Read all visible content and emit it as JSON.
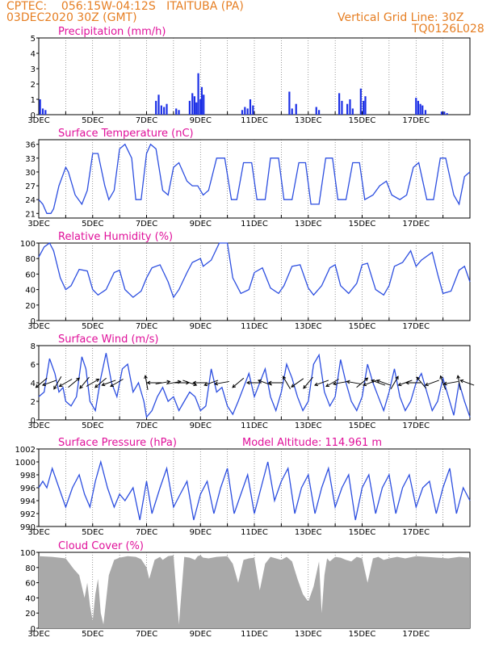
{
  "header": {
    "line1": "CPTEC:    056:15W-04:12S   ITAITUBA (PA)",
    "line2": "03DEC2020 30Z (GMT)",
    "right1": "Vertical Grid Line: 30Z",
    "right2": "TQ0126L028"
  },
  "colors": {
    "header": "#e67e22",
    "title": "#e0109a",
    "line": "#2d4fe0",
    "bar": "#1c30e6",
    "cloud": "#a9a9a9"
  },
  "x_ticks": [
    "3DEC",
    "5DEC",
    "7DEC",
    "9DEC",
    "11DEC",
    "13DEC",
    "15DEC",
    "17DEC"
  ],
  "chart_data": [
    {
      "type": "bar",
      "title": "Precipitation (mm/h)",
      "ylim": [
        0,
        5
      ],
      "yticks": [
        "0",
        "1",
        "2",
        "3",
        "4",
        "5"
      ],
      "x_unit": "days since 3DEC 00Z",
      "events": [
        [
          0.05,
          1.0
        ],
        [
          0.15,
          0.4
        ],
        [
          0.25,
          0.3
        ],
        [
          4.35,
          0.9
        ],
        [
          4.45,
          1.3
        ],
        [
          4.55,
          0.6
        ],
        [
          4.65,
          0.5
        ],
        [
          4.75,
          0.7
        ],
        [
          5.1,
          0.4
        ],
        [
          5.2,
          0.3
        ],
        [
          5.6,
          0.9
        ],
        [
          5.7,
          1.4
        ],
        [
          5.78,
          1.2
        ],
        [
          5.85,
          0.8
        ],
        [
          5.92,
          2.7
        ],
        [
          6.0,
          1.0
        ],
        [
          6.05,
          1.8
        ],
        [
          6.12,
          1.3
        ],
        [
          7.55,
          0.3
        ],
        [
          7.65,
          0.5
        ],
        [
          7.75,
          0.4
        ],
        [
          7.85,
          1.0
        ],
        [
          7.95,
          0.6
        ],
        [
          9.3,
          1.5
        ],
        [
          9.4,
          0.4
        ],
        [
          9.55,
          0.7
        ],
        [
          10.3,
          0.5
        ],
        [
          10.4,
          0.3
        ],
        [
          11.15,
          1.4
        ],
        [
          11.25,
          0.9
        ],
        [
          11.45,
          0.7
        ],
        [
          11.55,
          1.0
        ],
        [
          11.65,
          0.4
        ],
        [
          11.95,
          1.7
        ],
        [
          12.05,
          0.9
        ],
        [
          12.12,
          1.2
        ],
        [
          14.0,
          1.1
        ],
        [
          14.08,
          0.9
        ],
        [
          14.16,
          0.7
        ],
        [
          14.24,
          0.6
        ],
        [
          14.35,
          0.3
        ],
        [
          14.95,
          0.2
        ],
        [
          15.05,
          0.2
        ],
        [
          15.15,
          0.1
        ]
      ]
    },
    {
      "type": "line",
      "title": "Surface Temperature (nC)",
      "ylim": [
        20,
        37
      ],
      "yticks": [
        "21",
        "24",
        "27",
        "30",
        "33",
        "36"
      ],
      "x": [
        0,
        0.15,
        0.3,
        0.45,
        0.55,
        0.75,
        1.0,
        1.1,
        1.35,
        1.6,
        1.8,
        2.0,
        2.2,
        2.45,
        2.6,
        2.8,
        3.0,
        3.2,
        3.45,
        3.6,
        3.8,
        4.0,
        4.15,
        4.35,
        4.6,
        4.8,
        5.0,
        5.2,
        5.5,
        5.7,
        5.9,
        6.1,
        6.3,
        6.6,
        6.9,
        7.15,
        7.35,
        7.6,
        7.9,
        8.1,
        8.4,
        8.6,
        8.9,
        9.1,
        9.4,
        9.65,
        9.9,
        10.1,
        10.4,
        10.65,
        10.9,
        11.1,
        11.4,
        11.65,
        11.9,
        12.1,
        12.4,
        12.65,
        12.9,
        13.1,
        13.4,
        13.65,
        13.9,
        14.1,
        14.4,
        14.65,
        14.9,
        15.1,
        15.4,
        15.6,
        15.8,
        16.0
      ],
      "values": [
        24,
        23,
        21,
        21,
        22,
        27,
        31,
        30,
        25,
        23,
        26,
        34,
        34,
        27,
        24,
        26,
        35,
        36,
        33,
        24,
        24,
        34,
        36,
        35,
        26,
        25,
        31,
        32,
        28,
        27,
        27,
        25,
        26,
        33,
        33,
        24,
        24,
        32,
        32,
        24,
        24,
        33,
        33,
        24,
        24,
        32,
        32,
        23,
        23,
        33,
        33,
        24,
        24,
        32,
        32,
        24,
        25,
        27,
        28,
        25,
        24,
        25,
        31,
        32,
        24,
        24,
        33,
        33,
        25,
        23,
        29,
        30
      ]
    },
    {
      "type": "line",
      "title": "Relative Humidity (%)",
      "ylim": [
        0,
        100
      ],
      "yticks": [
        "0",
        "20",
        "40",
        "60",
        "80",
        "100"
      ],
      "x": [
        0,
        0.2,
        0.4,
        0.55,
        0.8,
        1.0,
        1.2,
        1.5,
        1.8,
        2.0,
        2.2,
        2.5,
        2.8,
        3.0,
        3.2,
        3.5,
        3.8,
        4.0,
        4.2,
        4.5,
        4.8,
        5.0,
        5.2,
        5.5,
        5.7,
        6.0,
        6.1,
        6.4,
        6.7,
        7.0,
        7.2,
        7.5,
        7.8,
        8.0,
        8.3,
        8.6,
        8.9,
        9.1,
        9.4,
        9.7,
        10.0,
        10.2,
        10.5,
        10.8,
        11.0,
        11.2,
        11.5,
        11.8,
        12.0,
        12.2,
        12.5,
        12.8,
        13.0,
        13.2,
        13.5,
        13.8,
        14.0,
        14.2,
        14.6,
        14.8,
        15.0,
        15.3,
        15.6,
        15.8,
        16.0
      ],
      "values": [
        82,
        95,
        100,
        90,
        55,
        40,
        45,
        66,
        64,
        40,
        33,
        40,
        62,
        65,
        40,
        30,
        38,
        55,
        68,
        72,
        50,
        30,
        40,
        62,
        75,
        80,
        70,
        78,
        100,
        100,
        55,
        35,
        40,
        62,
        68,
        42,
        35,
        45,
        70,
        72,
        42,
        33,
        45,
        68,
        72,
        45,
        35,
        48,
        72,
        74,
        40,
        33,
        45,
        70,
        75,
        90,
        70,
        78,
        88,
        60,
        35,
        38,
        65,
        70,
        50
      ]
    },
    {
      "type": "line",
      "title": "Surface Wind (m/s)",
      "ylim": [
        0,
        8
      ],
      "yticks": [
        "0",
        "2",
        "4",
        "6",
        "8"
      ],
      "x": [
        0,
        0.2,
        0.4,
        0.6,
        0.75,
        0.9,
        1.0,
        1.2,
        1.4,
        1.6,
        1.75,
        1.9,
        2.1,
        2.3,
        2.5,
        2.7,
        2.9,
        3.1,
        3.3,
        3.5,
        3.7,
        3.9,
        4.0,
        4.2,
        4.4,
        4.6,
        4.8,
        5.0,
        5.2,
        5.4,
        5.6,
        5.8,
        6.0,
        6.2,
        6.4,
        6.6,
        6.8,
        7.0,
        7.2,
        7.4,
        7.6,
        7.8,
        8.0,
        8.2,
        8.4,
        8.6,
        8.8,
        9.0,
        9.2,
        9.4,
        9.6,
        9.8,
        10.0,
        10.2,
        10.4,
        10.6,
        10.8,
        11.0,
        11.2,
        11.4,
        11.6,
        11.8,
        12.0,
        12.2,
        12.4,
        12.6,
        12.8,
        13.0,
        13.2,
        13.4,
        13.6,
        13.8,
        14.0,
        14.2,
        14.4,
        14.6,
        14.8,
        15.0,
        15.2,
        15.4,
        15.6,
        15.8,
        16.0
      ],
      "values": [
        2.5,
        3.0,
        6.6,
        5.0,
        3.0,
        3.5,
        2.0,
        1.5,
        2.5,
        6.8,
        5.5,
        2.0,
        1.0,
        4.5,
        7.2,
        4.0,
        2.5,
        5.5,
        6.0,
        3.0,
        4.0,
        2.0,
        0.3,
        1.0,
        2.5,
        3.5,
        2.0,
        2.5,
        1.0,
        2.0,
        3.0,
        2.5,
        1.0,
        1.5,
        5.5,
        3.0,
        3.5,
        1.5,
        0.6,
        2.0,
        3.5,
        5.0,
        2.5,
        4.0,
        5.5,
        2.5,
        1.0,
        3.0,
        6.0,
        4.5,
        2.5,
        1.0,
        2.0,
        6.0,
        7.0,
        3.0,
        1.5,
        2.5,
        6.5,
        4.0,
        2.0,
        1.0,
        2.5,
        6.0,
        4.0,
        2.5,
        1.0,
        3.0,
        5.5,
        2.5,
        1.0,
        2.0,
        4.0,
        5.0,
        3.0,
        1.0,
        2.0,
        4.5,
        2.5,
        0.5,
        4.0,
        2.0,
        0.3
      ],
      "arrows": [
        [
          0.1,
          220
        ],
        [
          0.4,
          200
        ],
        [
          0.7,
          240
        ],
        [
          1.0,
          210
        ],
        [
          1.3,
          40
        ],
        [
          1.7,
          230
        ],
        [
          2.0,
          30
        ],
        [
          2.3,
          220
        ],
        [
          2.6,
          200
        ],
        [
          2.9,
          210
        ],
        [
          4.0,
          100
        ],
        [
          4.3,
          180
        ],
        [
          4.6,
          10
        ],
        [
          5.0,
          10
        ],
        [
          5.3,
          0
        ],
        [
          5.6,
          340
        ],
        [
          6.0,
          180
        ],
        [
          6.4,
          200
        ],
        [
          6.8,
          190
        ],
        [
          7.4,
          220
        ],
        [
          8.0,
          180
        ],
        [
          8.4,
          160
        ],
        [
          8.8,
          180
        ],
        [
          9.2,
          120
        ],
        [
          9.6,
          215
        ],
        [
          10.0,
          230
        ],
        [
          10.5,
          200
        ],
        [
          10.9,
          210
        ],
        [
          11.2,
          190
        ],
        [
          11.7,
          170
        ],
        [
          12.0,
          40
        ],
        [
          12.3,
          200
        ],
        [
          12.6,
          160
        ],
        [
          12.8,
          160
        ],
        [
          13.2,
          60
        ],
        [
          13.6,
          200
        ],
        [
          13.9,
          180
        ],
        [
          14.2,
          130
        ],
        [
          14.6,
          200
        ],
        [
          15.0,
          110
        ],
        [
          15.3,
          190
        ],
        [
          15.6,
          100
        ],
        [
          15.9,
          160
        ]
      ]
    },
    {
      "type": "line",
      "title": "Surface Pressure (hPa)",
      "annotation": "Model Altitude: 114.961 m",
      "ylim": [
        990,
        1002
      ],
      "yticks": [
        "990",
        "992",
        "994",
        "996",
        "998",
        "1000",
        "1002"
      ],
      "x": [
        0,
        0.15,
        0.3,
        0.5,
        0.75,
        1.0,
        1.25,
        1.5,
        1.7,
        1.9,
        2.1,
        2.3,
        2.55,
        2.8,
        3.0,
        3.2,
        3.5,
        3.75,
        4.0,
        4.2,
        4.5,
        4.75,
        5.0,
        5.25,
        5.5,
        5.75,
        6.0,
        6.25,
        6.5,
        6.75,
        7.0,
        7.25,
        7.5,
        7.75,
        8.0,
        8.25,
        8.5,
        8.75,
        9.0,
        9.25,
        9.5,
        9.75,
        10.0,
        10.25,
        10.5,
        10.75,
        11.0,
        11.25,
        11.5,
        11.75,
        12.0,
        12.25,
        12.5,
        12.75,
        13.0,
        13.25,
        13.5,
        13.75,
        14.0,
        14.25,
        14.5,
        14.75,
        15.0,
        15.25,
        15.5,
        15.75,
        16.0
      ],
      "values": [
        996,
        997,
        996,
        999,
        996,
        993,
        996,
        998,
        995,
        993,
        997,
        1000,
        996,
        993,
        995,
        994,
        996,
        991,
        997,
        992,
        996,
        999,
        993,
        995,
        997,
        991,
        995,
        997,
        992,
        996,
        999,
        992,
        995,
        998,
        992,
        996,
        1000,
        994,
        997,
        999,
        992,
        996,
        998,
        992,
        996,
        999,
        993,
        996,
        998,
        991,
        996,
        998,
        992,
        996,
        998,
        992,
        996,
        998,
        993,
        996,
        997,
        992,
        996,
        999,
        992,
        996,
        994
      ]
    },
    {
      "type": "area",
      "title": "Cloud Cover (%)",
      "ylim": [
        0,
        100
      ],
      "yticks": [
        "0",
        "20",
        "40",
        "60",
        "80",
        "100"
      ],
      "x": [
        0,
        0.5,
        1.0,
        1.3,
        1.5,
        1.6,
        1.7,
        1.8,
        1.9,
        2.0,
        2.1,
        2.2,
        2.3,
        2.4,
        2.6,
        2.8,
        3.0,
        3.3,
        3.6,
        3.8,
        4.0,
        4.1,
        4.3,
        4.5,
        4.6,
        4.8,
        5.0,
        5.2,
        5.4,
        5.6,
        5.8,
        5.9,
        6.0,
        6.1,
        6.3,
        6.6,
        7.0,
        7.2,
        7.4,
        7.6,
        7.8,
        8.0,
        8.2,
        8.4,
        8.6,
        8.8,
        9.0,
        9.2,
        9.4,
        9.6,
        9.8,
        10.0,
        10.2,
        10.4,
        10.5,
        10.6,
        10.7,
        10.8,
        11.0,
        11.2,
        11.4,
        11.6,
        11.8,
        12.0,
        12.2,
        12.4,
        12.6,
        12.8,
        13.0,
        13.3,
        13.6,
        14.0,
        14.4,
        14.8,
        15.2,
        15.6,
        16.0
      ],
      "values": [
        95,
        94,
        92,
        78,
        70,
        55,
        40,
        60,
        30,
        10,
        45,
        65,
        20,
        5,
        70,
        90,
        93,
        95,
        94,
        91,
        80,
        65,
        90,
        94,
        90,
        95,
        96,
        5,
        94,
        93,
        90,
        95,
        96,
        93,
        92,
        94,
        95,
        85,
        60,
        90,
        92,
        93,
        50,
        85,
        94,
        92,
        90,
        94,
        88,
        65,
        45,
        35,
        55,
        88,
        20,
        70,
        92,
        88,
        94,
        93,
        90,
        88,
        94,
        92,
        60,
        92,
        94,
        90,
        92,
        94,
        92,
        95,
        94,
        93,
        92,
        94,
        93
      ]
    }
  ]
}
